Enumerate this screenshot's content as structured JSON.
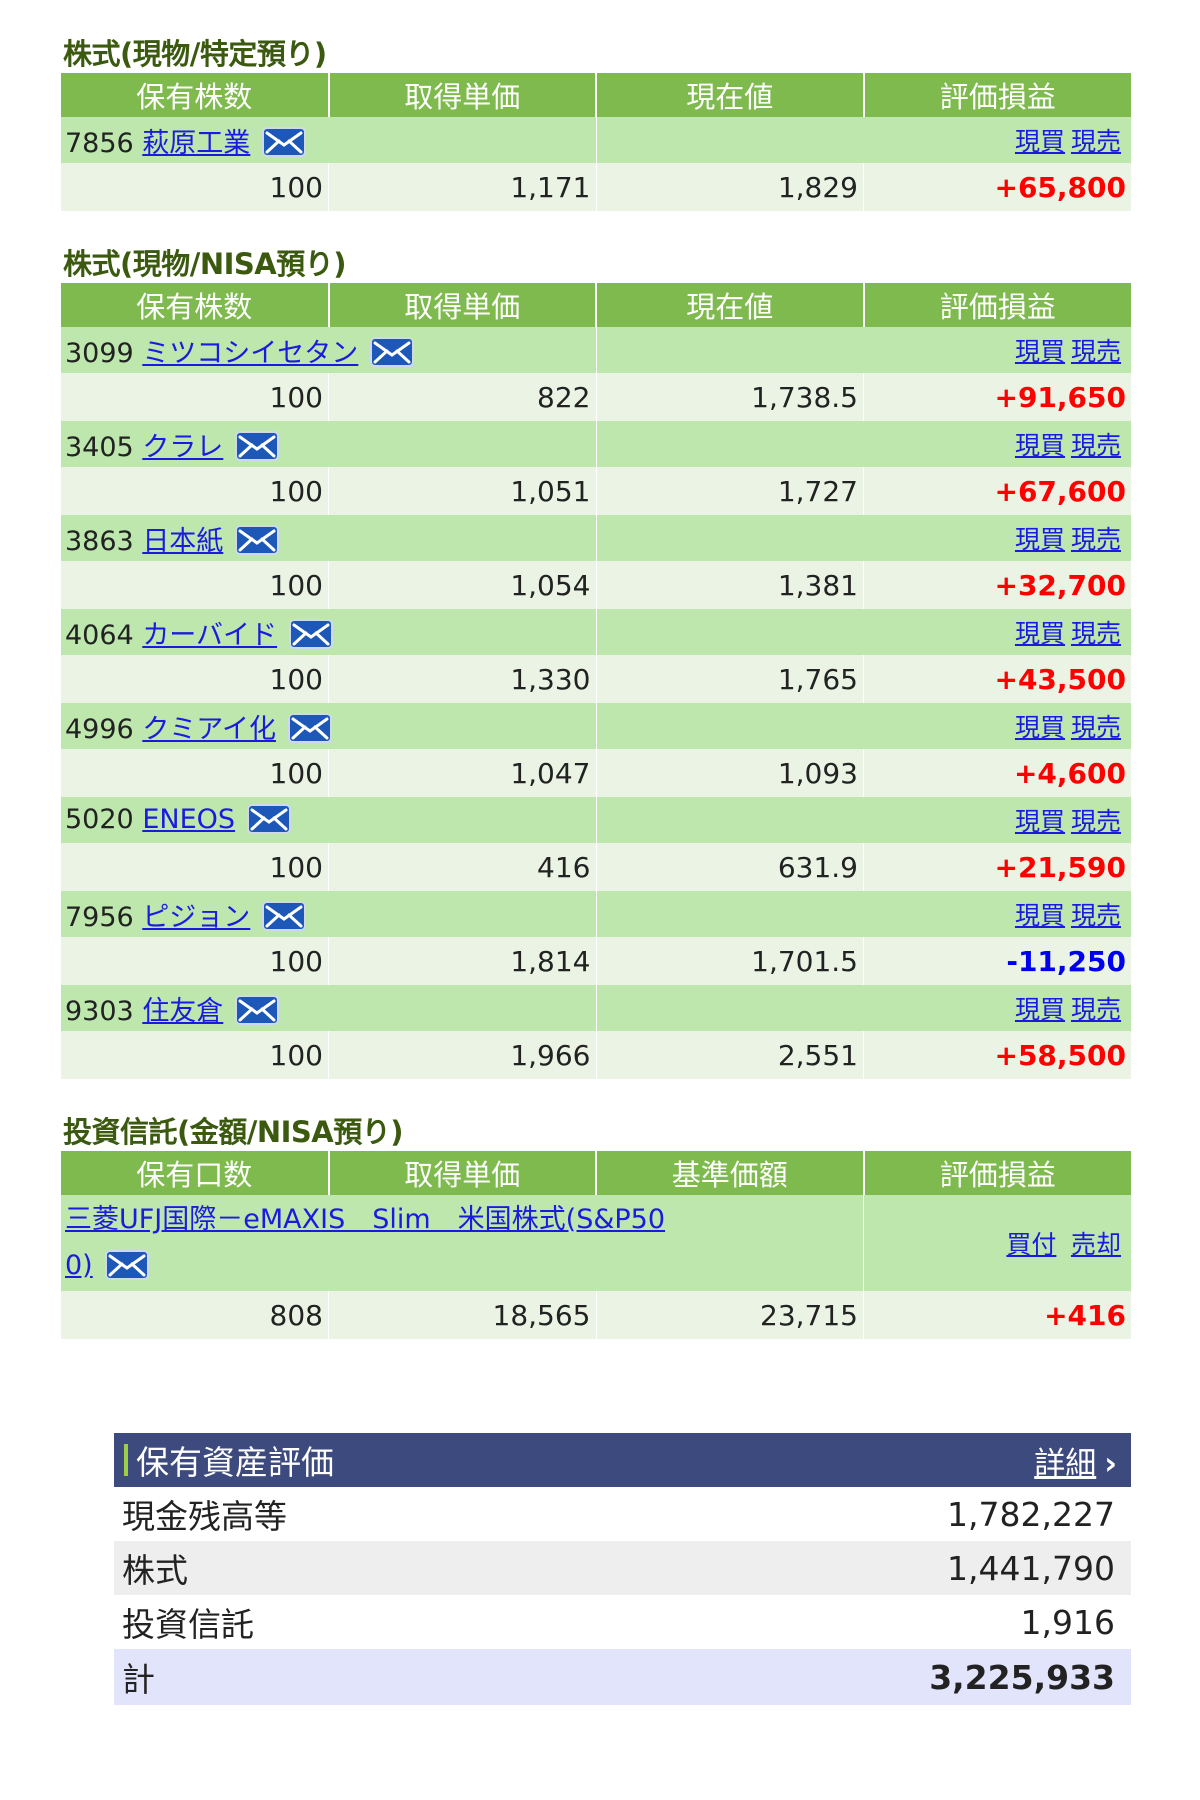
{
  "colors": {
    "header_green": "#7fba4e",
    "name_row": "#bde7ad",
    "value_row": "#ebf4e4",
    "gain": "#ff0000",
    "loss": "#0000ee",
    "asset_header": "#3d4a7e",
    "total_row": "#e2e4fc"
  },
  "tokutei": {
    "title": "株式(現物/特定預り)",
    "headers": [
      "保有株数",
      "取得単価",
      "現在値",
      "評価損益"
    ],
    "rows": [
      {
        "code": "7856",
        "name": "萩原工業",
        "buy": "現買",
        "sell": "現売",
        "shares": "100",
        "cost": "1,171",
        "price": "1,829",
        "pl": "+65,800",
        "pl_sign": "pos",
        "icon": "mail-icon"
      }
    ]
  },
  "nisa": {
    "title": "株式(現物/NISA預り)",
    "headers": [
      "保有株数",
      "取得単価",
      "現在値",
      "評価損益"
    ],
    "rows": [
      {
        "code": "3099",
        "name": "ミツコシイセタン",
        "buy": "現買",
        "sell": "現売",
        "shares": "100",
        "cost": "822",
        "price": "1,738.5",
        "pl": "+91,650",
        "pl_sign": "pos",
        "icon": "mail-icon"
      },
      {
        "code": "3405",
        "name": "クラレ",
        "buy": "現買",
        "sell": "現売",
        "shares": "100",
        "cost": "1,051",
        "price": "1,727",
        "pl": "+67,600",
        "pl_sign": "pos",
        "icon": "mail-icon"
      },
      {
        "code": "3863",
        "name": "日本紙",
        "buy": "現買",
        "sell": "現売",
        "shares": "100",
        "cost": "1,054",
        "price": "1,381",
        "pl": "+32,700",
        "pl_sign": "pos",
        "icon": "mail-icon"
      },
      {
        "code": "4064",
        "name": "カーバイド",
        "buy": "現買",
        "sell": "現売",
        "shares": "100",
        "cost": "1,330",
        "price": "1,765",
        "pl": "+43,500",
        "pl_sign": "pos",
        "icon": "mail-icon"
      },
      {
        "code": "4996",
        "name": "クミアイ化",
        "buy": "現買",
        "sell": "現売",
        "shares": "100",
        "cost": "1,047",
        "price": "1,093",
        "pl": "+4,600",
        "pl_sign": "pos",
        "icon": "mail-icon"
      },
      {
        "code": "5020",
        "name": "ENEOS",
        "buy": "現買",
        "sell": "現売",
        "shares": "100",
        "cost": "416",
        "price": "631.9",
        "pl": "+21,590",
        "pl_sign": "pos",
        "icon": "mail-icon"
      },
      {
        "code": "7956",
        "name": "ピジョン",
        "buy": "現買",
        "sell": "現売",
        "shares": "100",
        "cost": "1,814",
        "price": "1,701.5",
        "pl": "-11,250",
        "pl_sign": "neg",
        "icon": "mail-icon"
      },
      {
        "code": "9303",
        "name": "住友倉",
        "buy": "現買",
        "sell": "現売",
        "shares": "100",
        "cost": "1,966",
        "price": "2,551",
        "pl": "+58,500",
        "pl_sign": "pos",
        "icon": "mail-icon"
      }
    ]
  },
  "fund": {
    "title": "投資信託(金額/NISA預り)",
    "headers": [
      "保有口数",
      "取得単価",
      "基準価額",
      "評価損益"
    ],
    "name_line1": "三菱UFJ国際－eMAXIS　Slim　米国株式(S&P50",
    "name_line2": "0)",
    "buy": "買付",
    "sell": "売却",
    "units": "808",
    "cost": "18,565",
    "nav": "23,715",
    "pl": "+416",
    "icon": "mail-icon"
  },
  "assets": {
    "title": "保有資産評価",
    "detail": "詳細",
    "chevron": "›",
    "rows": [
      {
        "label": "現金残高等",
        "value": "1,782,227"
      },
      {
        "label": "株式",
        "value": "1,441,790"
      },
      {
        "label": "投資信託",
        "value": "1,916"
      }
    ],
    "total_label": "計",
    "total_value": "3,225,933"
  }
}
